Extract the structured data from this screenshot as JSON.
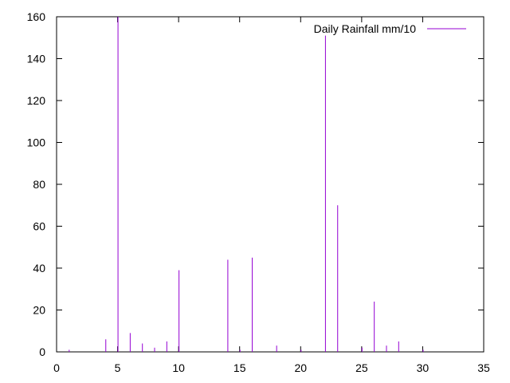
{
  "chart_data": {
    "type": "bar",
    "title": "",
    "xlabel": "",
    "ylabel": "",
    "xlim": [
      0,
      35
    ],
    "ylim": [
      0,
      160
    ],
    "xticks": [
      0,
      5,
      10,
      15,
      20,
      25,
      30,
      35
    ],
    "yticks": [
      0,
      20,
      40,
      60,
      80,
      100,
      120,
      140,
      160
    ],
    "grid": false,
    "legend_position": "top-right",
    "series": [
      {
        "name": "Daily Rainfall mm/10",
        "color": "#9400d3",
        "x": [
          1,
          4,
          5,
          6,
          7,
          8,
          9,
          10,
          14,
          15,
          16,
          18,
          20,
          22,
          23,
          25,
          26,
          27,
          28,
          30
        ],
        "values": [
          1,
          6,
          160,
          9,
          4,
          2,
          5,
          39,
          44,
          1,
          45,
          3,
          1,
          151,
          70,
          2,
          24,
          3,
          5,
          1
        ]
      }
    ]
  }
}
